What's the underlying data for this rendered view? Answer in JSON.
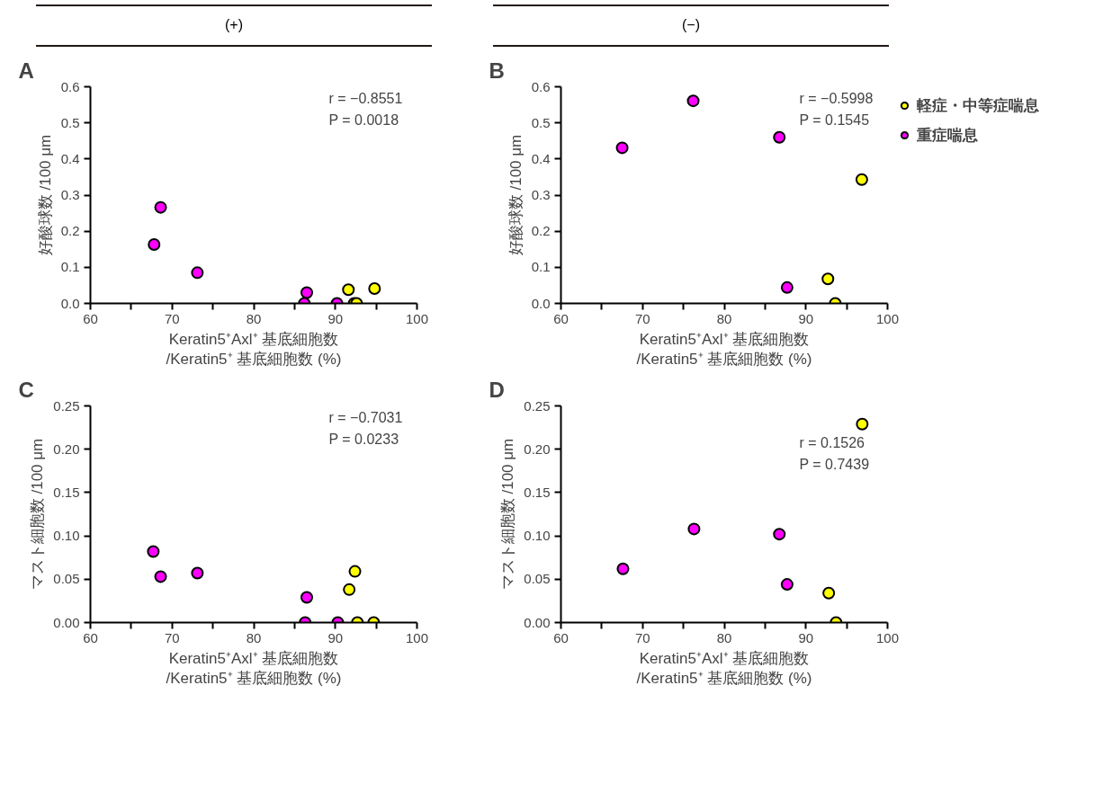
{
  "chart_data": [
    {
      "type": "scatter",
      "title": "A",
      "subtitle": "(+)",
      "xlabel": "Keratin5⁺Axl⁺ 基底細胞数\n/Keratin5⁺ 基底細胞数 (%)",
      "ylabel": "好酸球数 /100 μm",
      "xlim": [
        60,
        100
      ],
      "xticks": [
        60,
        {
          "value": 65,
          "label": null
        },
        70,
        {
          "value": 75,
          "label": null
        },
        80,
        {
          "value": 85,
          "label": null
        },
        90,
        {
          "value": 95,
          "label": null
        },
        100
      ],
      "ylim": [
        0,
        0.6
      ],
      "yticks": [
        {
          "value": 0,
          "label": "0.0"
        },
        0.1,
        0.2,
        0.3,
        0.4,
        0.5,
        0.6
      ],
      "marker": "circle",
      "grid": false,
      "legend": false,
      "annotations": [
        "r = −0.8551",
        "P = 0.0018"
      ],
      "series": [
        {
          "color": "#ffff00",
          "x": [
            91.6,
            94.8,
            92.3,
            92.6
          ],
          "values": [
            0.038,
            0.041,
            0,
            0
          ]
        },
        {
          "color": "#ff00ff",
          "x": [
            67.8,
            68.6,
            73.1,
            86.5,
            86.2,
            90.2
          ],
          "values": [
            0.163,
            0.266,
            0.085,
            0.03,
            0,
            0
          ]
        }
      ]
    },
    {
      "type": "scatter",
      "title": "B",
      "subtitle": "(−)",
      "xlabel": "Keratin5⁺Axl⁺ 基底細胞数\n/Keratin5⁺ 基底細胞数 (%)",
      "ylabel": "好酸球数 /100 μm",
      "xlim": [
        60,
        100
      ],
      "xticks": [
        60,
        {
          "value": 65,
          "label": null
        },
        70,
        {
          "value": 75,
          "label": null
        },
        80,
        {
          "value": 85,
          "label": null
        },
        90,
        {
          "value": 95,
          "label": null
        },
        100
      ],
      "ylim": [
        0,
        0.6
      ],
      "yticks": [
        {
          "value": 0,
          "label": "0.0"
        },
        0.1,
        0.2,
        0.3,
        0.4,
        0.5,
        0.6
      ],
      "marker": "circle",
      "grid": false,
      "legend": "right",
      "annotations": [
        "r = −0.5998",
        "P = 0.1545"
      ],
      "series": [
        {
          "name": "軽症・中等症喘息",
          "color": "#ffff00",
          "x": [
            96.85,
            92.7,
            93.6
          ],
          "values": [
            0.343,
            0.068,
            0
          ]
        },
        {
          "name": "重症喘息",
          "color": "#ff00ff",
          "x": [
            67.5,
            76.2,
            86.75,
            87.7
          ],
          "values": [
            0.431,
            0.561,
            0.46,
            0.044
          ]
        }
      ]
    },
    {
      "type": "scatter",
      "title": "C",
      "xlabel": "Keratin5⁺Axl⁺ 基底細胞数\n/Keratin5⁺ 基底細胞数 (%)",
      "ylabel": "マスト細胞数 /100 μm",
      "xlim": [
        60,
        100
      ],
      "xticks": [
        60,
        {
          "value": 65,
          "label": null
        },
        70,
        {
          "value": 75,
          "label": null
        },
        80,
        {
          "value": 85,
          "label": null
        },
        90,
        {
          "value": 95,
          "label": null
        },
        100
      ],
      "ylim": [
        0,
        0.25
      ],
      "yticks": [
        {
          "value": 0,
          "label": "0.00"
        },
        {
          "value": 0.05,
          "label": "0.05"
        },
        {
          "value": 0.1,
          "label": "0.10"
        },
        {
          "value": 0.15,
          "label": "0.15"
        },
        {
          "value": 0.2,
          "label": "0.20"
        },
        {
          "value": 0.25,
          "label": "0.25"
        }
      ],
      "marker": "circle",
      "grid": false,
      "legend": false,
      "annotations": [
        "r = −0.7031",
        "P = 0.0233"
      ],
      "series": [
        {
          "color": "#ffff00",
          "x": [
            92.4,
            91.7,
            92.7,
            94.7
          ],
          "values": [
            0.059,
            0.038,
            0,
            0
          ]
        },
        {
          "color": "#ff00ff",
          "x": [
            67.7,
            68.6,
            73.1,
            86.5,
            86.3,
            90.3
          ],
          "values": [
            0.082,
            0.053,
            0.057,
            0.029,
            0,
            0
          ]
        }
      ]
    },
    {
      "type": "scatter",
      "title": "D",
      "xlabel": "Keratin5⁺Axl⁺ 基底細胞数\n/Keratin5⁺ 基底細胞数 (%)",
      "ylabel": "マスト細胞数 /100 μm",
      "xlim": [
        60,
        100
      ],
      "xticks": [
        60,
        {
          "value": 65,
          "label": null
        },
        70,
        {
          "value": 75,
          "label": null
        },
        80,
        {
          "value": 85,
          "label": null
        },
        90,
        {
          "value": 95,
          "label": null
        },
        100
      ],
      "ylim": [
        0,
        0.25
      ],
      "yticks": [
        {
          "value": 0,
          "label": "0.00"
        },
        {
          "value": 0.05,
          "label": "0.05"
        },
        {
          "value": 0.1,
          "label": "0.10"
        },
        {
          "value": 0.15,
          "label": "0.15"
        },
        {
          "value": 0.2,
          "label": "0.20"
        },
        {
          "value": 0.25,
          "label": "0.25"
        }
      ],
      "marker": "circle",
      "grid": false,
      "legend": false,
      "annotations": [
        "r = 0.1526",
        "P = 0.7439"
      ],
      "series": [
        {
          "color": "#ffff00",
          "x": [
            96.9,
            92.8,
            93.7
          ],
          "values": [
            0.229,
            0.034,
            0
          ]
        },
        {
          "color": "#ff00ff",
          "x": [
            67.6,
            76.3,
            86.75,
            87.7
          ],
          "values": [
            0.062,
            0.108,
            0.102,
            0.044
          ]
        }
      ]
    }
  ]
}
